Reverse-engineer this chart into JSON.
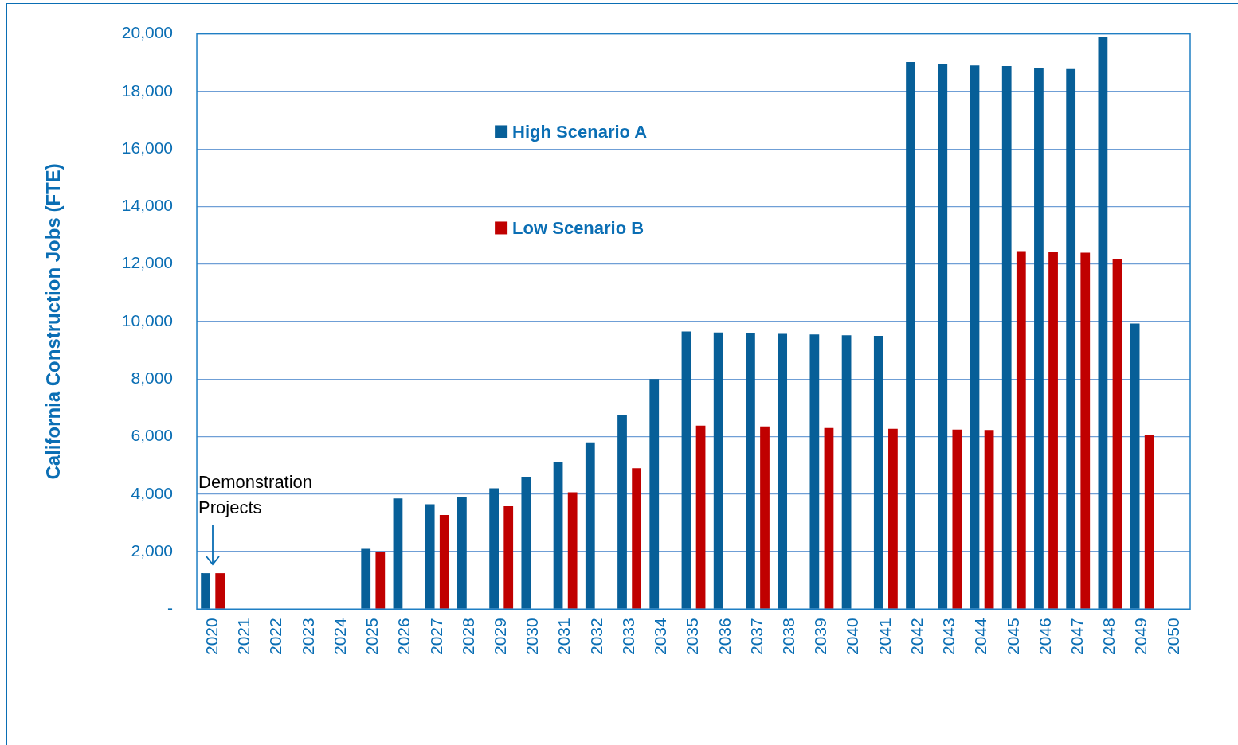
{
  "chart_data": {
    "type": "bar",
    "ylabel": "California Construction Jobs (FTE)",
    "categories": [
      "2020",
      "2021",
      "2022",
      "2023",
      "2024",
      "2025",
      "2026",
      "2027",
      "2028",
      "2029",
      "2030",
      "2031",
      "2032",
      "2033",
      "2034",
      "2035",
      "2036",
      "2037",
      "2038",
      "2039",
      "2040",
      "2041",
      "2042",
      "2043",
      "2044",
      "2045",
      "2046",
      "2047",
      "2048",
      "2049",
      "2050"
    ],
    "series": [
      {
        "name": "High Scenario A",
        "color": "#075f98",
        "values": [
          1250,
          0,
          0,
          0,
          0,
          2100,
          3850,
          3650,
          3900,
          4200,
          4600,
          5100,
          5800,
          6750,
          8000,
          9650,
          9620,
          9600,
          9570,
          9550,
          9520,
          9500,
          19020,
          18960,
          18900,
          18880,
          18830,
          18780,
          19900,
          9930,
          0
        ]
      },
      {
        "name": "Low Scenario B",
        "color": "#c00000",
        "values": [
          1250,
          0,
          0,
          0,
          0,
          1970,
          0,
          3270,
          0,
          3580,
          0,
          4060,
          0,
          4900,
          0,
          6380,
          0,
          6350,
          0,
          6300,
          0,
          6270,
          0,
          6240,
          6230,
          12450,
          12420,
          12390,
          12170,
          6070,
          0
        ]
      }
    ],
    "ylim": [
      0,
      20000
    ],
    "yticks": [
      {
        "value": 0,
        "label": "-"
      },
      {
        "value": 2000,
        "label": "2,000"
      },
      {
        "value": 4000,
        "label": "4,000"
      },
      {
        "value": 6000,
        "label": "6,000"
      },
      {
        "value": 8000,
        "label": "8,000"
      },
      {
        "value": 10000,
        "label": "10,000"
      },
      {
        "value": 12000,
        "label": "12,000"
      },
      {
        "value": 14000,
        "label": "14,000"
      },
      {
        "value": 16000,
        "label": "16,000"
      },
      {
        "value": 18000,
        "label": "18,000"
      },
      {
        "value": 20000,
        "label": "20,000"
      }
    ],
    "grid": "y",
    "legend": "top",
    "annotations": [
      "Demonstration Projects"
    ]
  }
}
